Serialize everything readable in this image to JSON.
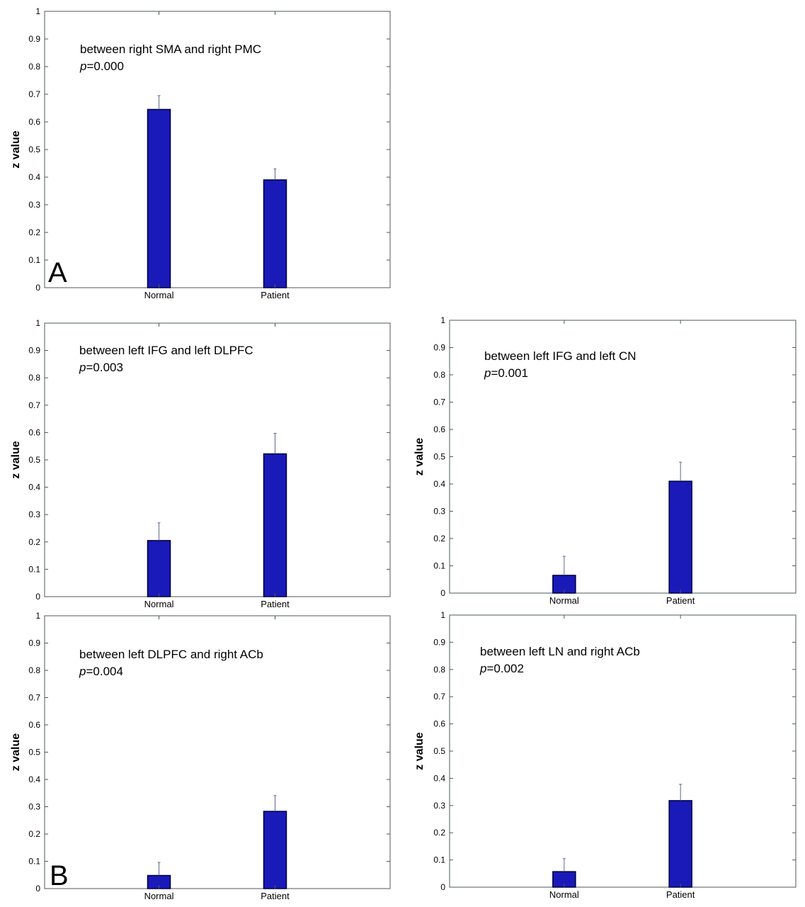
{
  "colors": {
    "bar": "#1a1ab8",
    "bar_edge": "#000040",
    "axes": "#4d5a5a",
    "error": "#5a6a8a"
  },
  "panel_labels": [
    "A",
    "B"
  ],
  "chart_data": [
    {
      "type": "bar",
      "categories": [
        "Normal",
        "Patient"
      ],
      "values": [
        0.645,
        0.39
      ],
      "errors": [
        0.05,
        0.04
      ],
      "ylabel": "z value",
      "ylim": [
        0,
        1
      ],
      "yticks": [
        "0",
        "0.1",
        "0.2",
        "0.3",
        "0.4",
        "0.5",
        "0.6",
        "0.7",
        "0.8",
        "0.9",
        "1"
      ],
      "annotation": "between right SMA and right PMC",
      "p_label": "p",
      "p_value": "=0.000"
    },
    {
      "type": "bar",
      "categories": [
        "Normal",
        "Patient"
      ],
      "values": [
        0.205,
        0.522
      ],
      "errors": [
        0.065,
        0.075
      ],
      "ylabel": "z value",
      "ylim": [
        0,
        1
      ],
      "yticks": [
        "0",
        "0.1",
        "0.2",
        "0.3",
        "0.4",
        "0.5",
        "0.6",
        "0.7",
        "0.8",
        "0.9",
        "1"
      ],
      "annotation": "between left IFG and left DLPFC",
      "p_label": "p",
      "p_value": "=0.003"
    },
    {
      "type": "bar",
      "categories": [
        "Normal",
        "Patient"
      ],
      "values": [
        0.065,
        0.41
      ],
      "errors": [
        0.07,
        0.07
      ],
      "ylabel": "z value",
      "ylim": [
        0,
        1
      ],
      "yticks": [
        "0",
        "0.1",
        "0.2",
        "0.3",
        "0.4",
        "0.5",
        "0.6",
        "0.7",
        "0.8",
        "0.9",
        "1"
      ],
      "annotation": "between left IFG and left CN",
      "p_label": "p",
      "p_value": "=0.001"
    },
    {
      "type": "bar",
      "categories": [
        "Normal",
        "Patient"
      ],
      "values": [
        0.048,
        0.283
      ],
      "errors": [
        0.048,
        0.058
      ],
      "ylabel": "z value",
      "ylim": [
        0,
        1
      ],
      "yticks": [
        "0",
        "0.1",
        "0.2",
        "0.3",
        "0.4",
        "0.5",
        "0.6",
        "0.7",
        "0.8",
        "0.9",
        "1"
      ],
      "annotation": "between left DLPFC and right ACb",
      "p_label": "p",
      "p_value": "=0.004"
    },
    {
      "type": "bar",
      "categories": [
        "Normal",
        "Patient"
      ],
      "values": [
        0.057,
        0.318
      ],
      "errors": [
        0.048,
        0.06
      ],
      "ylabel": "z value",
      "ylim": [
        0,
        1
      ],
      "yticks": [
        "0",
        "0.1",
        "0.2",
        "0.3",
        "0.4",
        "0.5",
        "0.6",
        "0.7",
        "0.8",
        "0.9",
        "1"
      ],
      "annotation": "between left LN and right ACb",
      "p_label": "p",
      "p_value": "=0.002"
    }
  ]
}
